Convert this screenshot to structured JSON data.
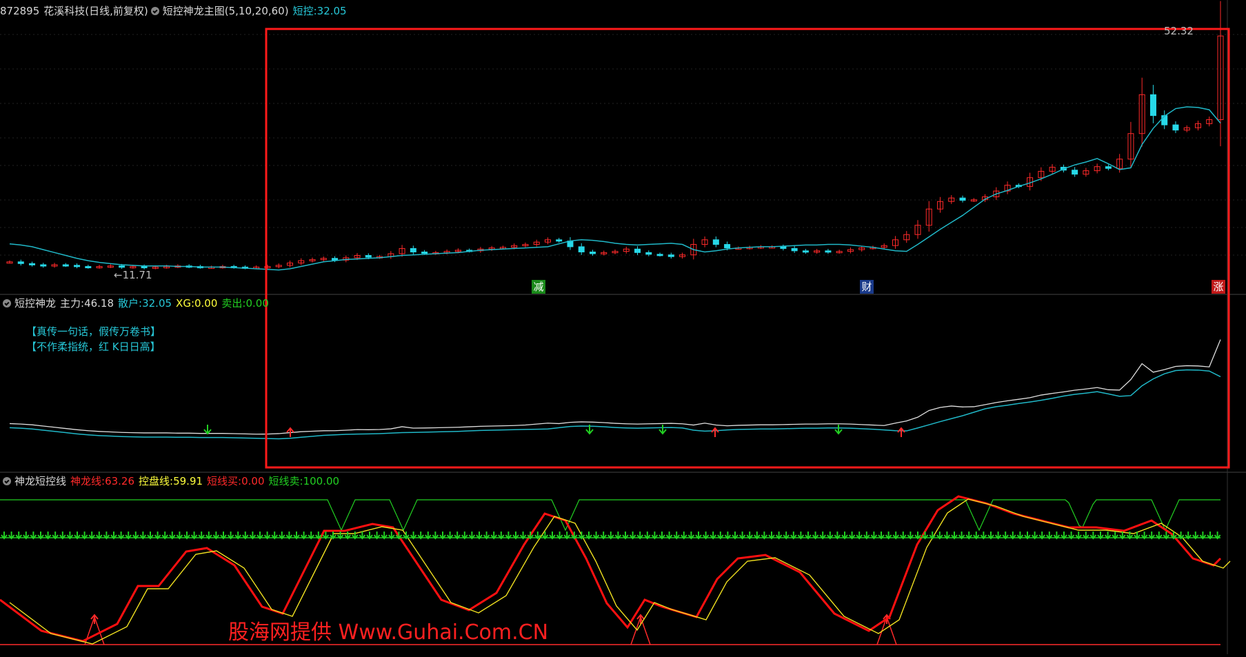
{
  "header_main": {
    "stock_code": "872895",
    "stock_name": "花溪科技",
    "period": "(日线,前复权)",
    "indicator_name": "短控神龙主图(5,10,20,60)",
    "value_label": "短控:",
    "value": "32.05"
  },
  "main_chart": {
    "high_label": "52.32",
    "low_label": "←11.71",
    "signals": [
      {
        "text": "减",
        "color": "#1a8a1a"
      },
      {
        "text": "财",
        "color": "#1a3a8a"
      },
      {
        "text": "涨",
        "color": "#c01818"
      }
    ]
  },
  "header_sub1": {
    "name": "短控神龙",
    "zhuli_label": "主力:",
    "zhuli": "46.18",
    "sanhu_label": "散户:",
    "sanhu": "32.05",
    "xg_label": "XG:",
    "xg": "0.00",
    "maichu_label": "卖出:",
    "maichu": "0.00"
  },
  "sub1_notes": [
    "【真传一句话，假传万卷书】",
    "【不作柔指统，红 K日日高】"
  ],
  "header_sub2": {
    "name": "神龙短控线",
    "shenlong_label": "神龙线:",
    "shenlong": "63.26",
    "kongpan_label": "控盘线:",
    "kongpan": "59.91",
    "dxmai_label": "短线买:",
    "dxmai": "0.00",
    "dxmaichu_label": "短线卖:",
    "dxmaichu": "100.00"
  },
  "watermark": "股海网提供 Www.Guhai.Com.CN",
  "colors": {
    "up": "#ff2a2a",
    "down": "#27d8e8",
    "ma": "#20b8c8",
    "white_line": "#e0e0e0",
    "green": "#22d022",
    "highlight": "#ff1a1a"
  },
  "chart_data": {
    "type": "line",
    "candle_closes": [
      13.4,
      13.1,
      12.9,
      12.7,
      12.9,
      12.8,
      12.6,
      12.5,
      12.6,
      12.7,
      12.5,
      12.6,
      12.4,
      12.5,
      12.6,
      12.7,
      12.6,
      12.5,
      12.5,
      12.6,
      12.5,
      12.4,
      12.5,
      12.6,
      12.8,
      13.2,
      13.6,
      13.8,
      14.0,
      13.7,
      14.1,
      14.5,
      14.2,
      14.3,
      14.8,
      15.7,
      15.1,
      14.9,
      15.0,
      15.2,
      15.4,
      15.3,
      15.6,
      15.8,
      15.9,
      16.2,
      16.4,
      16.8,
      17.2,
      17.0,
      16.0,
      15.1,
      14.8,
      15.0,
      15.2,
      15.6,
      15.0,
      14.7,
      14.6,
      14.3,
      14.6,
      16.4,
      17.2,
      16.4,
      15.8,
      15.8,
      15.9,
      16.0,
      16.0,
      15.7,
      15.3,
      15.1,
      15.3,
      15.1,
      15.2,
      15.5,
      15.8,
      15.9,
      16.2,
      17.2,
      18.1,
      19.7,
      22.5,
      23.8,
      24.4,
      24.0,
      24.1,
      24.6,
      25.6,
      26.6,
      26.4,
      27.9,
      29.0,
      29.7,
      29.2,
      28.5,
      29.1,
      29.8,
      29.5,
      31.1,
      35.5,
      42.2,
      38.6,
      37.0,
      36.1,
      36.5,
      37.2,
      37.9,
      52.32
    ],
    "ma_line": [
      16.5,
      16.3,
      16.0,
      15.5,
      15.0,
      14.5,
      14.0,
      13.6,
      13.3,
      13.1,
      12.9,
      12.8,
      12.7,
      12.7,
      12.7,
      12.6,
      12.6,
      12.5,
      12.5,
      12.5,
      12.4,
      12.3,
      12.2,
      12.1,
      12.0,
      12.2,
      12.6,
      13.0,
      13.4,
      13.6,
      13.8,
      13.9,
      14.0,
      14.1,
      14.3,
      14.5,
      14.6,
      14.7,
      14.8,
      14.9,
      15.0,
      15.2,
      15.4,
      15.5,
      15.6,
      15.7,
      15.8,
      15.9,
      16.0,
      16.5,
      17.0,
      17.2,
      17.1,
      16.9,
      16.6,
      16.4,
      16.3,
      16.4,
      16.5,
      16.6,
      16.4,
      15.5,
      15.1,
      15.3,
      15.6,
      15.8,
      15.9,
      16.0,
      16.0,
      16.1,
      16.2,
      16.3,
      16.3,
      16.4,
      16.4,
      16.3,
      16.1,
      15.9,
      15.6,
      15.3,
      15.2,
      16.4,
      17.7,
      19.0,
      20.2,
      21.4,
      22.8,
      24.2,
      25.1,
      25.7,
      26.4,
      27.0,
      27.7,
      28.5,
      29.4,
      30.1,
      30.6,
      31.2,
      30.3,
      29.3,
      29.6,
      33.6,
      36.4,
      38.5,
      39.8,
      40.1,
      40.0,
      39.6,
      37.3
    ]
  }
}
